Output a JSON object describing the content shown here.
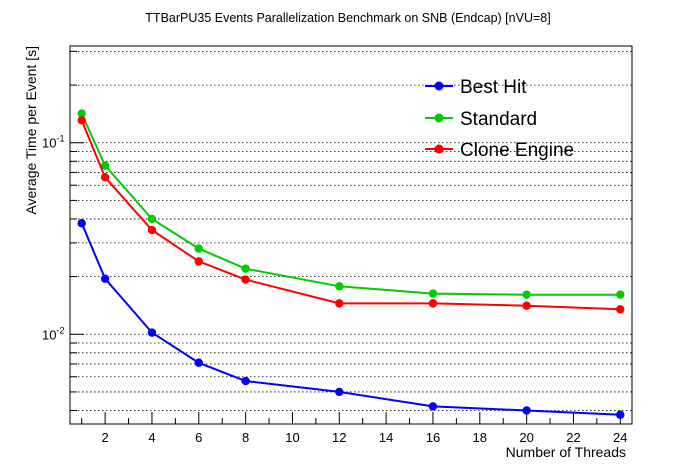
{
  "chart_data": {
    "type": "line",
    "title": "TTBarPU35 Events Parallelization Benchmark on SNB (Endcap) [nVU=8]",
    "xlabel": "Number of Threads",
    "ylabel": "Average Time per Event [s]",
    "xlim": [
      0.5,
      24.5
    ],
    "ylim": [
      0.0034,
      0.32
    ],
    "yscale": "log",
    "grid": "y-dotted",
    "legend_position": "top-right",
    "x_ticks": [
      2,
      4,
      6,
      8,
      10,
      12,
      14,
      16,
      18,
      20,
      22,
      24
    ],
    "y_tick_labels": {
      "base": "10",
      "exp_minus2": "-2",
      "exp_minus1": "-1"
    },
    "x": [
      1,
      2,
      4,
      6,
      8,
      12,
      16,
      20,
      24
    ],
    "series": [
      {
        "name": "Best Hit",
        "color": "#0000ff",
        "values": [
          0.038,
          0.0195,
          0.0102,
          0.0071,
          0.0057,
          0.005,
          0.0042,
          0.004,
          0.0038
        ]
      },
      {
        "name": "Standard",
        "color": "#00cc00",
        "values": [
          0.142,
          0.076,
          0.04,
          0.028,
          0.022,
          0.0178,
          0.0163,
          0.0161,
          0.0161
        ]
      },
      {
        "name": "Clone Engine",
        "color": "#ff0000",
        "values": [
          0.131,
          0.066,
          0.035,
          0.024,
          0.0193,
          0.0145,
          0.0145,
          0.0141,
          0.0135
        ]
      }
    ]
  }
}
